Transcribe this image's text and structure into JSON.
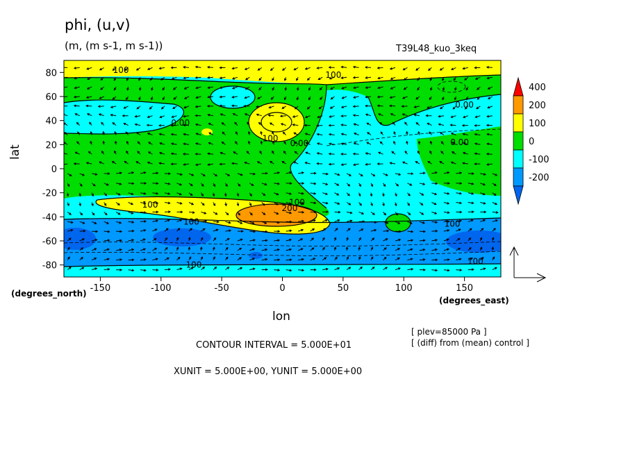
{
  "chart_data": {
    "type": "heatmap",
    "title": "phi, (u,v)",
    "units": "(m, (m s-1, m s-1))",
    "experiment": "T39L48_kuo_3keq",
    "xlabel": "lon",
    "ylabel": "lat",
    "x_unit_label": "(degrees_east)",
    "y_unit_label": "(degrees_north)",
    "xlim": [
      -180,
      180
    ],
    "ylim": [
      -90,
      90
    ],
    "x_ticks": [
      {
        "v": -150,
        "label": "-150"
      },
      {
        "v": -100,
        "label": "-100"
      },
      {
        "v": -50,
        "label": "-50"
      },
      {
        "v": 0,
        "label": "0"
      },
      {
        "v": 50,
        "label": "50"
      },
      {
        "v": 100,
        "label": "100"
      },
      {
        "v": 150,
        "label": "150"
      }
    ],
    "y_ticks": [
      {
        "v": 80,
        "label": "80"
      },
      {
        "v": 60,
        "label": "60"
      },
      {
        "v": 40,
        "label": "40"
      },
      {
        "v": 20,
        "label": "20"
      },
      {
        "v": 0,
        "label": "0"
      },
      {
        "v": -20,
        "label": "-20"
      },
      {
        "v": -40,
        "label": "-40"
      },
      {
        "v": -60,
        "label": "-60"
      },
      {
        "v": -80,
        "label": "-80"
      }
    ],
    "colorbar": {
      "levels": [
        "400",
        "200",
        "100",
        "0",
        "-100",
        "-200"
      ],
      "colors": [
        "#ff0000",
        "#ff9900",
        "#ffff00",
        "#00dd00",
        "#00ffff",
        "#0099ff",
        "#0066ee"
      ]
    },
    "contour_labels": [
      {
        "lon": -133,
        "lat": 82,
        "text": "100"
      },
      {
        "lon": 42,
        "lat": 78,
        "text": "100"
      },
      {
        "lon": 150,
        "lat": 53,
        "text": "0.00"
      },
      {
        "lon": -84,
        "lat": 38,
        "text": "0.00"
      },
      {
        "lon": -10,
        "lat": 25,
        "text": "100"
      },
      {
        "lon": 14,
        "lat": 21,
        "text": "0.00"
      },
      {
        "lon": 146,
        "lat": 22,
        "text": "0.00"
      },
      {
        "lon": -109,
        "lat": -30,
        "text": "100"
      },
      {
        "lon": 6,
        "lat": -33,
        "text": "200"
      },
      {
        "lon": 12,
        "lat": -28,
        "text": "100"
      },
      {
        "lon": -75,
        "lat": -44,
        "text": "100"
      },
      {
        "lon": 140,
        "lat": -46,
        "text": "100"
      },
      {
        "lon": -73,
        "lat": -80,
        "text": "100"
      },
      {
        "lon": 159,
        "lat": -77,
        "text": "100"
      }
    ],
    "vector_reference": {
      "x_label": "XUNIT = 5.000E+00",
      "y_label": "YUNIT = 5.000E+00"
    }
  },
  "notes": {
    "plev": "[ plev=85000 Pa ]",
    "diff": "[ (diff) from (mean) control ]",
    "contour_interval": "CONTOUR INTERVAL = 5.000E+01",
    "vector_units": "XUNIT = 5.000E+00, YUNIT = 5.000E+00"
  }
}
